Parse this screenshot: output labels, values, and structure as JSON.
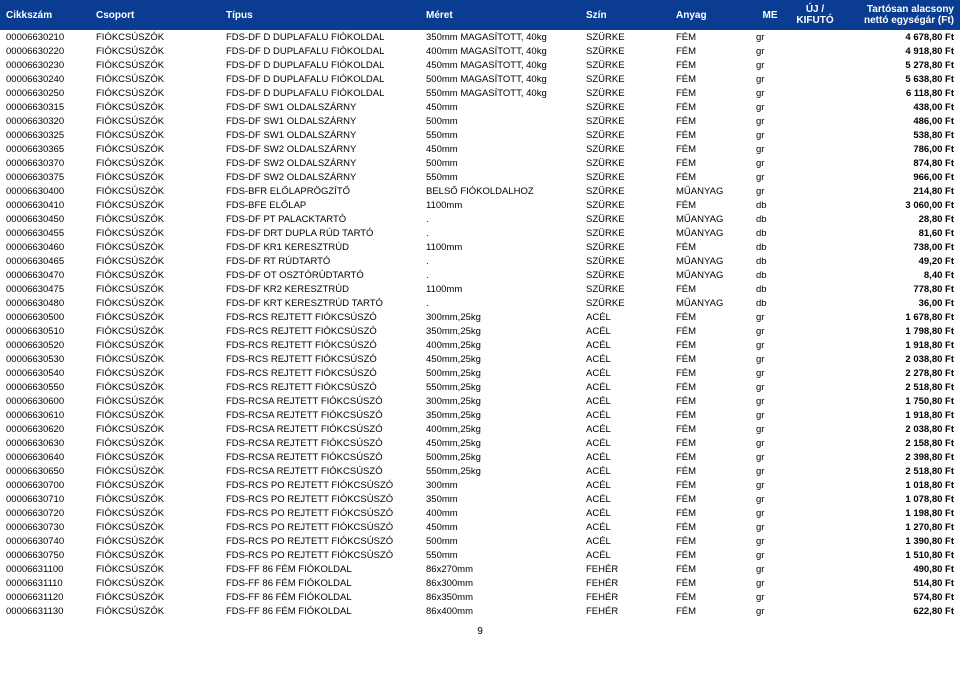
{
  "header": {
    "cikkszam": "Cikkszám",
    "csoport": "Csoport",
    "tipus": "Típus",
    "meret": "Méret",
    "szin": "Szín",
    "anyag": "Anyag",
    "me": "ME",
    "uj": "ÚJ / KIFUTÓ",
    "ar": "Tartósan alacsony nettó egységár (Ft)"
  },
  "rows": [
    {
      "cikk": "00006630210",
      "csop": "FIÓKCSÚSZÓK",
      "tip": "FDS-DF D DUPLAFALU FIÓKOLDAL",
      "mer": "350mm MAGASÍTOTT, 40kg",
      "szin": "SZÜRKE",
      "any": "FÉM",
      "me": "gr",
      "ar": "4 678,80 Ft"
    },
    {
      "cikk": "00006630220",
      "csop": "FIÓKCSÚSZÓK",
      "tip": "FDS-DF D DUPLAFALU FIÓKOLDAL",
      "mer": "400mm MAGASÍTOTT, 40kg",
      "szin": "SZÜRKE",
      "any": "FÉM",
      "me": "gr",
      "ar": "4 918,80 Ft"
    },
    {
      "cikk": "00006630230",
      "csop": "FIÓKCSÚSZÓK",
      "tip": "FDS-DF D DUPLAFALU FIÓKOLDAL",
      "mer": "450mm MAGASÍTOTT, 40kg",
      "szin": "SZÜRKE",
      "any": "FÉM",
      "me": "gr",
      "ar": "5 278,80 Ft"
    },
    {
      "cikk": "00006630240",
      "csop": "FIÓKCSÚSZÓK",
      "tip": "FDS-DF D DUPLAFALU FIÓKOLDAL",
      "mer": "500mm MAGASÍTOTT, 40kg",
      "szin": "SZÜRKE",
      "any": "FÉM",
      "me": "gr",
      "ar": "5 638,80 Ft"
    },
    {
      "cikk": "00006630250",
      "csop": "FIÓKCSÚSZÓK",
      "tip": "FDS-DF D DUPLAFALU FIÓKOLDAL",
      "mer": "550mm MAGASÍTOTT, 40kg",
      "szin": "SZÜRKE",
      "any": "FÉM",
      "me": "gr",
      "ar": "6 118,80 Ft"
    },
    {
      "cikk": "00006630315",
      "csop": "FIÓKCSÚSZÓK",
      "tip": "FDS-DF SW1 OLDALSZÁRNY",
      "mer": "450mm",
      "szin": "SZÜRKE",
      "any": "FÉM",
      "me": "gr",
      "ar": "438,00 Ft"
    },
    {
      "cikk": "00006630320",
      "csop": "FIÓKCSÚSZÓK",
      "tip": "FDS-DF SW1 OLDALSZÁRNY",
      "mer": "500mm",
      "szin": "SZÜRKE",
      "any": "FÉM",
      "me": "gr",
      "ar": "486,00 Ft"
    },
    {
      "cikk": "00006630325",
      "csop": "FIÓKCSÚSZÓK",
      "tip": "FDS-DF SW1 OLDALSZÁRNY",
      "mer": "550mm",
      "szin": "SZÜRKE",
      "any": "FÉM",
      "me": "gr",
      "ar": "538,80 Ft"
    },
    {
      "cikk": "00006630365",
      "csop": "FIÓKCSÚSZÓK",
      "tip": "FDS-DF SW2 OLDALSZÁRNY",
      "mer": "450mm",
      "szin": "SZÜRKE",
      "any": "FÉM",
      "me": "gr",
      "ar": "786,00 Ft"
    },
    {
      "cikk": "00006630370",
      "csop": "FIÓKCSÚSZÓK",
      "tip": "FDS-DF SW2 OLDALSZÁRNY",
      "mer": "500mm",
      "szin": "SZÜRKE",
      "any": "FÉM",
      "me": "gr",
      "ar": "874,80 Ft"
    },
    {
      "cikk": "00006630375",
      "csop": "FIÓKCSÚSZÓK",
      "tip": "FDS-DF SW2 OLDALSZÁRNY",
      "mer": "550mm",
      "szin": "SZÜRKE",
      "any": "FÉM",
      "me": "gr",
      "ar": "966,00 Ft"
    },
    {
      "cikk": "00006630400",
      "csop": "FIÓKCSÚSZÓK",
      "tip": "FDS-BFR ELŐLAPRÖGZÍTŐ",
      "mer": "BELSŐ FIÓKOLDALHOZ",
      "szin": "SZÜRKE",
      "any": "MŰANYAG",
      "me": "gr",
      "ar": "214,80 Ft"
    },
    {
      "cikk": "00006630410",
      "csop": "FIÓKCSÚSZÓK",
      "tip": "FDS-BFE ELŐLAP",
      "mer": "1100mm",
      "szin": "SZÜRKE",
      "any": "FÉM",
      "me": "db",
      "ar": "3 060,00 Ft"
    },
    {
      "cikk": "00006630450",
      "csop": "FIÓKCSÚSZÓK",
      "tip": "FDS-DF PT PALACKTARTÓ",
      "mer": ".",
      "szin": "SZÜRKE",
      "any": "MŰANYAG",
      "me": "db",
      "ar": "28,80 Ft"
    },
    {
      "cikk": "00006630455",
      "csop": "FIÓKCSÚSZÓK",
      "tip": "FDS-DF DRT DUPLA RÚD TARTÓ",
      "mer": ".",
      "szin": "SZÜRKE",
      "any": "MŰANYAG",
      "me": "db",
      "ar": "81,60 Ft"
    },
    {
      "cikk": "00006630460",
      "csop": "FIÓKCSÚSZÓK",
      "tip": "FDS-DF KR1 KERESZTRÚD",
      "mer": "1100mm",
      "szin": "SZÜRKE",
      "any": "FÉM",
      "me": "db",
      "ar": "738,00 Ft"
    },
    {
      "cikk": "00006630465",
      "csop": "FIÓKCSÚSZÓK",
      "tip": "FDS-DF RT RÚDTARTÓ",
      "mer": ".",
      "szin": "SZÜRKE",
      "any": "MŰANYAG",
      "me": "db",
      "ar": "49,20 Ft"
    },
    {
      "cikk": "00006630470",
      "csop": "FIÓKCSÚSZÓK",
      "tip": "FDS-DF OT OSZTÓRÚDTARTÓ",
      "mer": ".",
      "szin": "SZÜRKE",
      "any": "MŰANYAG",
      "me": "db",
      "ar": "8,40 Ft"
    },
    {
      "cikk": "00006630475",
      "csop": "FIÓKCSÚSZÓK",
      "tip": "FDS-DF KR2 KERESZTRÚD",
      "mer": "1100mm",
      "szin": "SZÜRKE",
      "any": "FÉM",
      "me": "db",
      "ar": "778,80 Ft"
    },
    {
      "cikk": "00006630480",
      "csop": "FIÓKCSÚSZÓK",
      "tip": "FDS-DF KRT KERESZTRÚD TARTÓ",
      "mer": ".",
      "szin": "SZÜRKE",
      "any": "MŰANYAG",
      "me": "db",
      "ar": "36,00 Ft"
    },
    {
      "cikk": "00006630500",
      "csop": "FIÓKCSÚSZÓK",
      "tip": "FDS-RCS REJTETT FIÓKCSÚSZÓ",
      "mer": "300mm,25kg",
      "szin": "ACÉL",
      "any": "FÉM",
      "me": "gr",
      "ar": "1 678,80 Ft"
    },
    {
      "cikk": "00006630510",
      "csop": "FIÓKCSÚSZÓK",
      "tip": "FDS-RCS REJTETT FIÓKCSÚSZÓ",
      "mer": "350mm,25kg",
      "szin": "ACÉL",
      "any": "FÉM",
      "me": "gr",
      "ar": "1 798,80 Ft"
    },
    {
      "cikk": "00006630520",
      "csop": "FIÓKCSÚSZÓK",
      "tip": "FDS-RCS REJTETT FIÓKCSÚSZÓ",
      "mer": "400mm,25kg",
      "szin": "ACÉL",
      "any": "FÉM",
      "me": "gr",
      "ar": "1 918,80 Ft"
    },
    {
      "cikk": "00006630530",
      "csop": "FIÓKCSÚSZÓK",
      "tip": "FDS-RCS REJTETT FIÓKCSÚSZÓ",
      "mer": "450mm,25kg",
      "szin": "ACÉL",
      "any": "FÉM",
      "me": "gr",
      "ar": "2 038,80 Ft"
    },
    {
      "cikk": "00006630540",
      "csop": "FIÓKCSÚSZÓK",
      "tip": "FDS-RCS REJTETT FIÓKCSÚSZÓ",
      "mer": "500mm,25kg",
      "szin": "ACÉL",
      "any": "FÉM",
      "me": "gr",
      "ar": "2 278,80 Ft"
    },
    {
      "cikk": "00006630550",
      "csop": "FIÓKCSÚSZÓK",
      "tip": "FDS-RCS REJTETT FIÓKCSÚSZÓ",
      "mer": "550mm,25kg",
      "szin": "ACÉL",
      "any": "FÉM",
      "me": "gr",
      "ar": "2 518,80 Ft"
    },
    {
      "cikk": "00006630600",
      "csop": "FIÓKCSÚSZÓK",
      "tip": "FDS-RCSA REJTETT FIÓKCSÚSZÓ",
      "mer": "300mm,25kg",
      "szin": "ACÉL",
      "any": "FÉM",
      "me": "gr",
      "ar": "1 750,80 Ft"
    },
    {
      "cikk": "00006630610",
      "csop": "FIÓKCSÚSZÓK",
      "tip": "FDS-RCSA REJTETT FIÓKCSÚSZÓ",
      "mer": "350mm,25kg",
      "szin": "ACÉL",
      "any": "FÉM",
      "me": "gr",
      "ar": "1 918,80 Ft"
    },
    {
      "cikk": "00006630620",
      "csop": "FIÓKCSÚSZÓK",
      "tip": "FDS-RCSA REJTETT FIÓKCSÚSZÓ",
      "mer": "400mm,25kg",
      "szin": "ACÉL",
      "any": "FÉM",
      "me": "gr",
      "ar": "2 038,80 Ft"
    },
    {
      "cikk": "00006630630",
      "csop": "FIÓKCSÚSZÓK",
      "tip": "FDS-RCSA REJTETT FIÓKCSÚSZÓ",
      "mer": "450mm,25kg",
      "szin": "ACÉL",
      "any": "FÉM",
      "me": "gr",
      "ar": "2 158,80 Ft"
    },
    {
      "cikk": "00006630640",
      "csop": "FIÓKCSÚSZÓK",
      "tip": "FDS-RCSA REJTETT FIÓKCSÚSZÓ",
      "mer": "500mm,25kg",
      "szin": "ACÉL",
      "any": "FÉM",
      "me": "gr",
      "ar": "2 398,80 Ft"
    },
    {
      "cikk": "00006630650",
      "csop": "FIÓKCSÚSZÓK",
      "tip": "FDS-RCSA REJTETT FIÓKCSÚSZÓ",
      "mer": "550mm,25kg",
      "szin": "ACÉL",
      "any": "FÉM",
      "me": "gr",
      "ar": "2 518,80 Ft"
    },
    {
      "cikk": "00006630700",
      "csop": "FIÓKCSÚSZÓK",
      "tip": "FDS-RCS PO REJTETT FIÓKCSÚSZÓ",
      "mer": "300mm",
      "szin": "ACÉL",
      "any": "FÉM",
      "me": "gr",
      "ar": "1 018,80 Ft"
    },
    {
      "cikk": "00006630710",
      "csop": "FIÓKCSÚSZÓK",
      "tip": "FDS-RCS PO REJTETT FIÓKCSÚSZÓ",
      "mer": "350mm",
      "szin": "ACÉL",
      "any": "FÉM",
      "me": "gr",
      "ar": "1 078,80 Ft"
    },
    {
      "cikk": "00006630720",
      "csop": "FIÓKCSÚSZÓK",
      "tip": "FDS-RCS PO REJTETT FIÓKCSÚSZÓ",
      "mer": "400mm",
      "szin": "ACÉL",
      "any": "FÉM",
      "me": "gr",
      "ar": "1 198,80 Ft"
    },
    {
      "cikk": "00006630730",
      "csop": "FIÓKCSÚSZÓK",
      "tip": "FDS-RCS PO REJTETT FIÓKCSÚSZÓ",
      "mer": "450mm",
      "szin": "ACÉL",
      "any": "FÉM",
      "me": "gr",
      "ar": "1 270,80 Ft"
    },
    {
      "cikk": "00006630740",
      "csop": "FIÓKCSÚSZÓK",
      "tip": "FDS-RCS PO REJTETT FIÓKCSÚSZÓ",
      "mer": "500mm",
      "szin": "ACÉL",
      "any": "FÉM",
      "me": "gr",
      "ar": "1 390,80 Ft"
    },
    {
      "cikk": "00006630750",
      "csop": "FIÓKCSÚSZÓK",
      "tip": "FDS-RCS PO REJTETT FIÓKCSÚSZÓ",
      "mer": "550mm",
      "szin": "ACÉL",
      "any": "FÉM",
      "me": "gr",
      "ar": "1 510,80 Ft"
    },
    {
      "cikk": "00006631100",
      "csop": "FIÓKCSÚSZÓK",
      "tip": "FDS-FF 86 FÉM FIÓKOLDAL",
      "mer": "86x270mm",
      "szin": "FEHÉR",
      "any": "FÉM",
      "me": "gr",
      "ar": "490,80 Ft"
    },
    {
      "cikk": "00006631110",
      "csop": "FIÓKCSÚSZÓK",
      "tip": "FDS-FF 86 FÉM FIÓKOLDAL",
      "mer": "86x300mm",
      "szin": "FEHÉR",
      "any": "FÉM",
      "me": "gr",
      "ar": "514,80 Ft"
    },
    {
      "cikk": "00006631120",
      "csop": "FIÓKCSÚSZÓK",
      "tip": "FDS-FF 86 FÉM FIÓKOLDAL",
      "mer": "86x350mm",
      "szin": "FEHÉR",
      "any": "FÉM",
      "me": "gr",
      "ar": "574,80 Ft"
    },
    {
      "cikk": "00006631130",
      "csop": "FIÓKCSÚSZÓK",
      "tip": "FDS-FF 86 FÉM FIÓKOLDAL",
      "mer": "86x400mm",
      "szin": "FEHÉR",
      "any": "FÉM",
      "me": "gr",
      "ar": "622,80 Ft"
    }
  ],
  "page_number": "9"
}
